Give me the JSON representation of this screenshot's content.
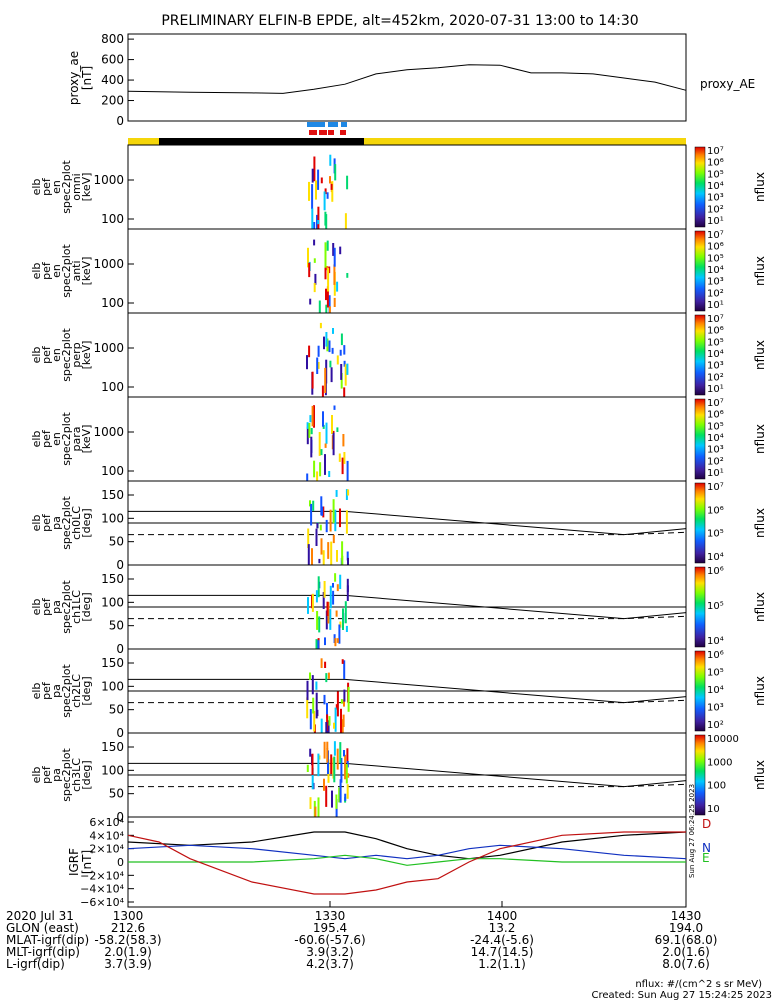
{
  "title": "PRELIMINARY ELFIN-B EPDE, alt=452km, 2020-07-31 13:00 to 14:30",
  "colors": {
    "yellow": "#f5d60a",
    "black": "#000000",
    "blue": "#1e88e5",
    "red": "#e01010",
    "green": "#22c022",
    "darkred": "#c01010",
    "darkblue": "#1030c0"
  },
  "state_bar": {
    "fgs_marks": "blue",
    "ifgs_marks": "red"
  },
  "chart_data": [
    {
      "type": "line",
      "ylabel_lines": [
        "proxy_ae",
        "[nT]"
      ],
      "series_label": "proxy_AE",
      "ylim": [
        0,
        850
      ],
      "yticks": [
        0,
        200,
        400,
        600,
        800
      ],
      "x": [
        0,
        5,
        10,
        20,
        25,
        30,
        35,
        40,
        45,
        50,
        55,
        60,
        65,
        70,
        75,
        80,
        85,
        90
      ],
      "values": [
        290,
        285,
        280,
        275,
        270,
        310,
        360,
        460,
        500,
        520,
        550,
        545,
        470,
        470,
        460,
        420,
        380,
        300
      ]
    },
    {
      "type": "heatmap",
      "ylabel_lines": [
        "elb",
        "pef",
        "en",
        "spec2plot",
        "omni",
        "[keV]"
      ],
      "yticks": [
        "1000",
        "100"
      ],
      "colorbar_ticks": [
        "10⁷",
        "10⁶",
        "10⁵",
        "10⁴",
        "10³",
        "10²",
        "10¹"
      ],
      "colorbar_label": "nflux"
    },
    {
      "type": "heatmap",
      "ylabel_lines": [
        "elb",
        "pef",
        "en",
        "spec2plot",
        "anti",
        "[keV]"
      ],
      "yticks": [
        "1000",
        "100"
      ],
      "colorbar_ticks": [
        "10⁷",
        "10⁶",
        "10⁵",
        "10⁴",
        "10³",
        "10²",
        "10¹"
      ],
      "colorbar_label": "nflux"
    },
    {
      "type": "heatmap",
      "ylabel_lines": [
        "elb",
        "pef",
        "en",
        "spec2plot",
        "perp",
        "[keV]"
      ],
      "yticks": [
        "1000",
        "100"
      ],
      "colorbar_ticks": [
        "10⁷",
        "10⁶",
        "10⁵",
        "10⁴",
        "10³",
        "10²",
        "10¹"
      ],
      "colorbar_label": "nflux"
    },
    {
      "type": "heatmap",
      "ylabel_lines": [
        "elb",
        "pef",
        "en",
        "spec2plot",
        "para",
        "[keV]"
      ],
      "yticks": [
        "1000",
        "100"
      ],
      "colorbar_ticks": [
        "10⁷",
        "10⁶",
        "10⁵",
        "10⁴",
        "10³",
        "10²",
        "10¹"
      ],
      "colorbar_label": "nflux"
    },
    {
      "type": "heatmap",
      "ylabel_lines": [
        "elb",
        "pef",
        "pa",
        "spec2plot",
        "ch0LC",
        "[deg]"
      ],
      "yticks": [
        "150",
        "100",
        "50",
        "0"
      ],
      "colorbar_ticks": [
        "10⁷",
        "10⁶",
        "10⁵",
        "10⁴"
      ],
      "colorbar_label": "nflux"
    },
    {
      "type": "heatmap",
      "ylabel_lines": [
        "elb",
        "pef",
        "pa",
        "spec2plot",
        "ch1LC",
        "[deg]"
      ],
      "yticks": [
        "150",
        "100",
        "50",
        "0"
      ],
      "colorbar_ticks": [
        "10⁶",
        "10⁵",
        "10⁴"
      ],
      "colorbar_label": "nflux"
    },
    {
      "type": "heatmap",
      "ylabel_lines": [
        "elb",
        "pef",
        "pa",
        "spec2plot",
        "ch2LC",
        "[deg]"
      ],
      "yticks": [
        "150",
        "100",
        "50",
        "0"
      ],
      "colorbar_ticks": [
        "10⁶",
        "10⁵",
        "10⁴",
        "10³",
        "10²"
      ],
      "colorbar_label": "nflux"
    },
    {
      "type": "heatmap",
      "ylabel_lines": [
        "elb",
        "pef",
        "pa",
        "spec2plot",
        "ch3LC",
        "[deg]"
      ],
      "yticks": [
        "150",
        "100",
        "50",
        "0"
      ],
      "colorbar_ticks": [
        "10000",
        "1000",
        "100",
        "10"
      ],
      "colorbar_label": "nflux"
    },
    {
      "type": "line",
      "ylabel_lines": [
        "IGRF",
        "[nT]"
      ],
      "ylim": [
        -60000,
        60000
      ],
      "yticks": [
        "6×10⁴",
        "4×10⁴",
        "2×10⁴",
        "0",
        "−2×10⁴",
        "−4×10⁴",
        "−6×10⁴"
      ],
      "x": [
        0,
        10,
        20,
        30,
        35,
        40,
        45,
        50,
        55,
        60,
        70,
        80,
        90
      ],
      "series": [
        {
          "name": "D",
          "values": [
            30000,
            25000,
            30000,
            45000,
            45000,
            35000,
            20000,
            10000,
            5000,
            10000,
            30000,
            40000,
            45000
          ]
        },
        {
          "name": "N",
          "values": [
            20000,
            25000,
            20000,
            10000,
            5000,
            10000,
            5000,
            10000,
            20000,
            25000,
            20000,
            10000,
            5000
          ]
        },
        {
          "name": "E",
          "values": [
            0,
            0,
            0,
            5000,
            10000,
            5000,
            -5000,
            0,
            5000,
            5000,
            0,
            0,
            0
          ]
        }
      ],
      "red_series": {
        "x": [
          0,
          5,
          10,
          20,
          30,
          35,
          40,
          45,
          50,
          55,
          60,
          70,
          80,
          90
        ],
        "values": [
          40000,
          30000,
          5000,
          -30000,
          -48000,
          -48000,
          -42000,
          -30000,
          -25000,
          0,
          20000,
          40000,
          45000,
          45000
        ]
      }
    }
  ],
  "xaxis": {
    "rows": [
      {
        "label": "2020 Jul 31",
        "values": [
          "1300",
          "1330",
          "1400",
          "1430"
        ]
      },
      {
        "label": "GLON (east)",
        "values": [
          "212.6",
          "195.4",
          "13.2",
          "194.0"
        ]
      },
      {
        "label": "MLAT-igrf(dip)",
        "values": [
          "-58.2(58.3)",
          "-60.6(-57.6)",
          "-24.4(-5.6)",
          "69.1(68.0)"
        ]
      },
      {
        "label": "MLT-igrf(dip)",
        "values": [
          "2.0(1.9)",
          "3.9(3.2)",
          "14.7(14.5)",
          "2.0(1.6)"
        ]
      },
      {
        "label": "L-igrf(dip)",
        "values": [
          "3.7(3.9)",
          "4.2(3.7)",
          "1.2(1.1)",
          "8.0(7.6)"
        ]
      }
    ]
  },
  "footer": {
    "units": "nflux: #/(cm^2 s sr MeV)",
    "created": "Created: Sun Aug 27 15:24:25 2023",
    "side_stamp": "Sun Aug 27 06:24:25 2023"
  }
}
